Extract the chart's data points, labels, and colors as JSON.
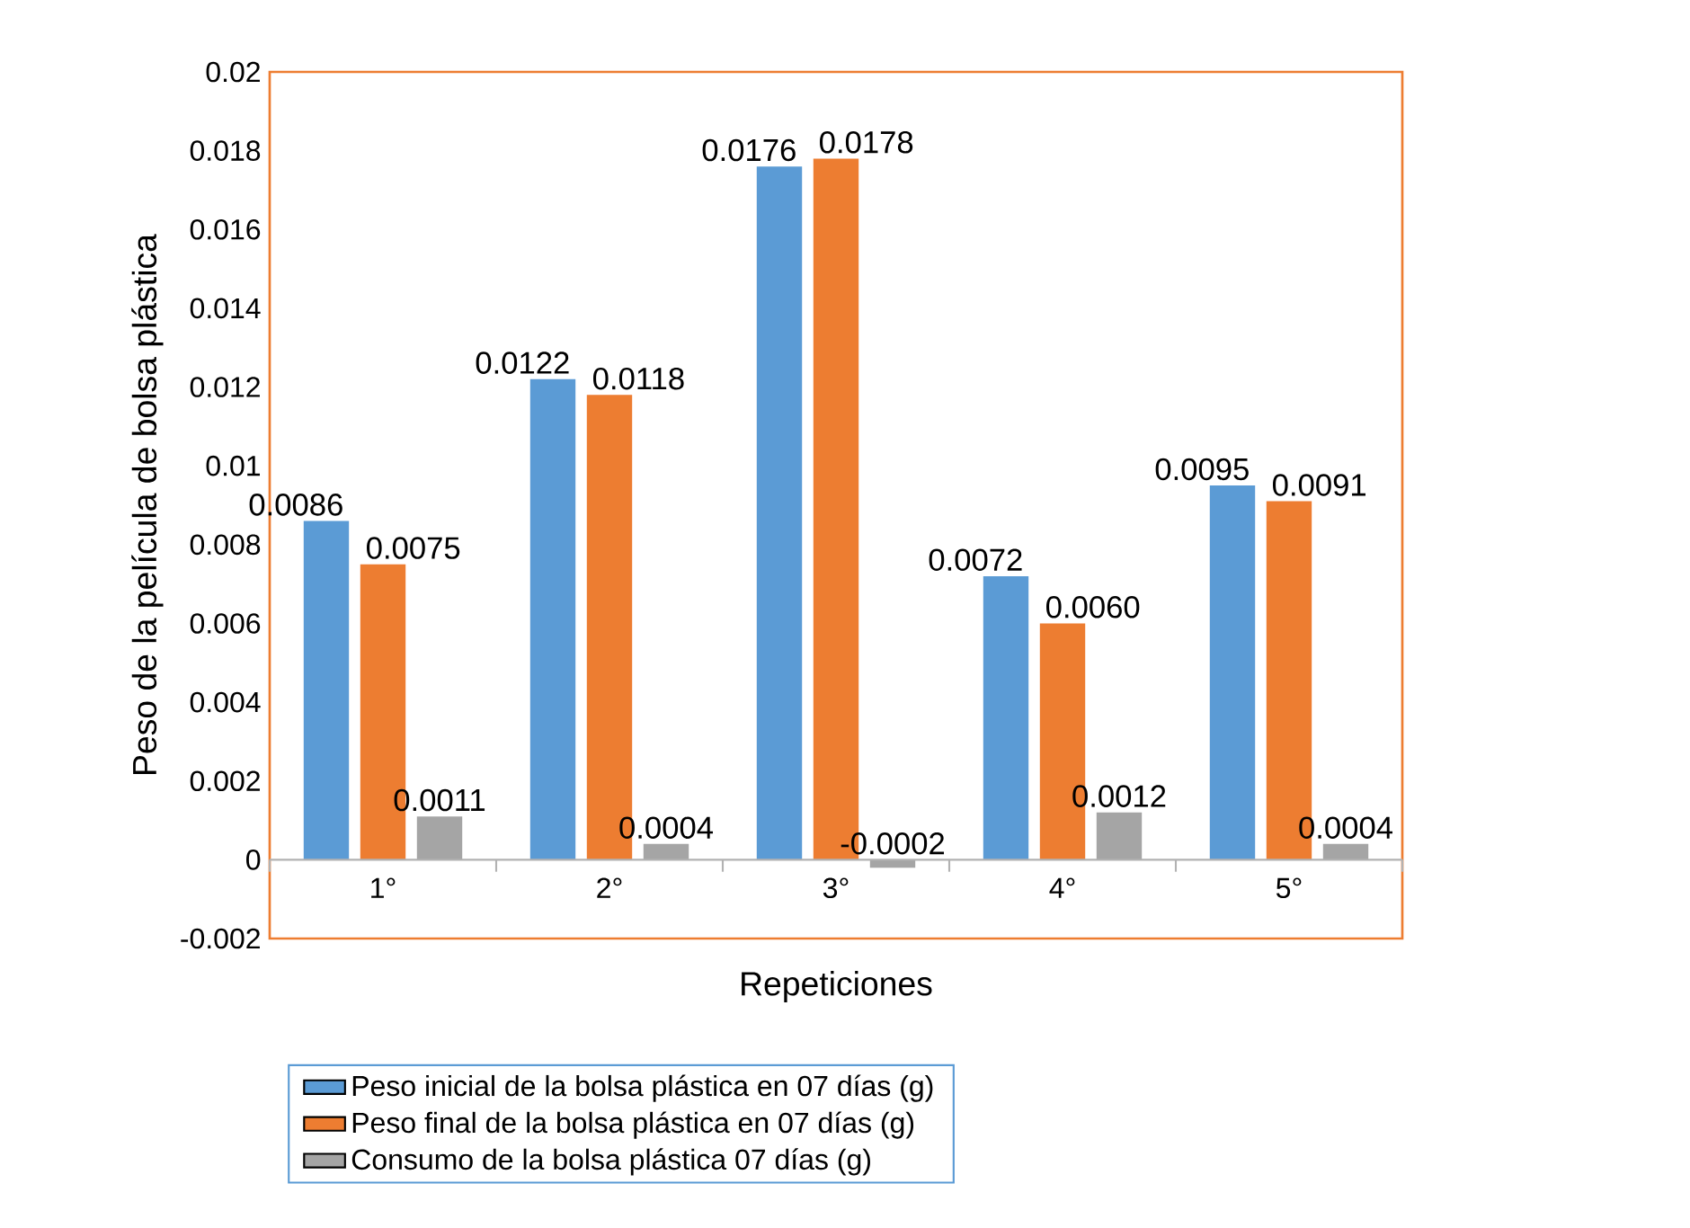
{
  "chart_data": {
    "type": "bar",
    "xlabel": "Repeticiones",
    "ylabel": "Peso de la película de bolsa plástica",
    "categories": [
      "1°",
      "2°",
      "3°",
      "4°",
      "5°"
    ],
    "series": [
      {
        "name": "Peso inicial de la bolsa plástica en 07 días (g)",
        "color": "#5b9bd5",
        "values": [
          0.0086,
          0.0122,
          0.0176,
          0.0072,
          0.0095
        ],
        "value_labels": [
          "0.0086",
          "0.0122",
          "0.0176",
          "0.0072",
          "0.0095"
        ]
      },
      {
        "name": "Peso final de la bolsa plástica en 07 días (g)",
        "color": "#ed7d31",
        "values": [
          0.0075,
          0.0118,
          0.0178,
          0.006,
          0.0091
        ],
        "value_labels": [
          "0.0075",
          "0.0118",
          "0.0178",
          "0.0060",
          "0.0091"
        ]
      },
      {
        "name": "Consumo de la bolsa plástica 07 días (g)",
        "color": "#a5a5a5",
        "values": [
          0.0011,
          0.0004,
          -0.0002,
          0.0012,
          0.0004
        ],
        "value_labels": [
          "0.0011",
          "0.0004",
          "-0.0002",
          "0.0012",
          "0.0004"
        ]
      }
    ],
    "ylim": [
      -0.002,
      0.02
    ],
    "yticks": [
      -0.002,
      0,
      0.002,
      0.004,
      0.006,
      0.008,
      0.01,
      0.012,
      0.014,
      0.016,
      0.018,
      0.02
    ],
    "legend": "bottom"
  }
}
